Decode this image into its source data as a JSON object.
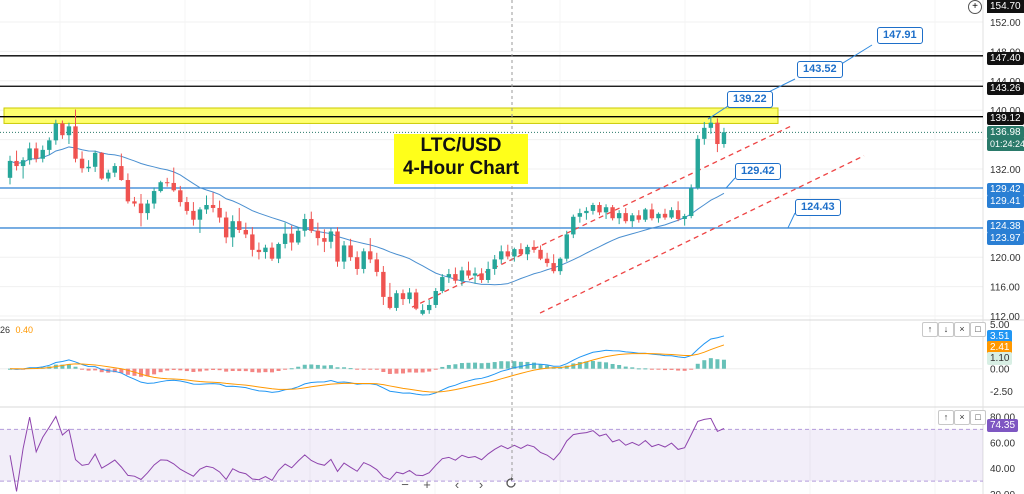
{
  "chart_data": {
    "type": "candlestick",
    "title": "LTC/USD\n4-Hour Chart",
    "title_lines": [
      "LTC/USD",
      "4-Hour Chart"
    ],
    "price_axis": {
      "range": [
        112,
        154.7
      ],
      "ticks": [
        152,
        148,
        144,
        140,
        136,
        132,
        128,
        124,
        120,
        116,
        112
      ],
      "top_label": "154.70"
    },
    "horizontal_levels": [
      {
        "value": 147.4,
        "color": "#000000",
        "label": "147.40"
      },
      {
        "value": 143.26,
        "color": "#000000",
        "label": "143.26"
      },
      {
        "value": 139.12,
        "color": "#000000",
        "label": "139.12"
      },
      {
        "value": 129.42,
        "color": "#2a7fd4",
        "label": "129.42"
      },
      {
        "value": 123.97,
        "color": "#2a7fd4",
        "label": "123.97"
      }
    ],
    "resistance_zone": [
      138.2,
      140.3
    ],
    "current_price": "136.98",
    "countdown": "01:24:24",
    "other_axis_badges": [
      "129.41",
      "124.38"
    ],
    "annotations": [
      "147.91",
      "143.52",
      "139.22",
      "129.42",
      "124.43"
    ],
    "macd": {
      "label_prefix": "26",
      "label_value": "0.40",
      "range": [
        -3.5,
        5
      ],
      "ticks": [
        "5.00",
        "2.50",
        "0.00",
        "-2.50"
      ],
      "badges": [
        "3.51",
        "2.41",
        "1.10"
      ]
    },
    "rsi": {
      "range": [
        20,
        85
      ],
      "ticks": [
        "80.00",
        "60.00",
        "40.00",
        "20.00"
      ],
      "badge": "74.35",
      "band": [
        30,
        70
      ]
    },
    "candles": [
      [
        130.8,
        133.8,
        129.9,
        133.1
      ],
      [
        133.1,
        134.5,
        131.8,
        132.4
      ],
      [
        132.4,
        133.6,
        130.7,
        133.2
      ],
      [
        133.2,
        135.6,
        132.6,
        134.8
      ],
      [
        134.8,
        135.6,
        132.9,
        133.4
      ],
      [
        133.4,
        135.2,
        132.9,
        134.6
      ],
      [
        134.6,
        136.3,
        133.9,
        135.9
      ],
      [
        135.9,
        138.7,
        135.3,
        138.2
      ],
      [
        138.2,
        138.6,
        136.1,
        136.6
      ],
      [
        136.6,
        138.3,
        135.4,
        137.8
      ],
      [
        137.8,
        140.1,
        132.9,
        133.4
      ],
      [
        133.4,
        134.4,
        131.5,
        132.1
      ],
      [
        132.1,
        133.2,
        131.6,
        132.3
      ],
      [
        132.3,
        134.5,
        131.6,
        134.2
      ],
      [
        134.2,
        134.3,
        130.5,
        130.7
      ],
      [
        130.7,
        131.9,
        130.3,
        131.5
      ],
      [
        131.5,
        132.8,
        130.9,
        132.4
      ],
      [
        132.4,
        134.1,
        130.4,
        130.5
      ],
      [
        130.5,
        131.4,
        127.3,
        127.6
      ],
      [
        127.6,
        128.2,
        126.9,
        127.3
      ],
      [
        127.3,
        128.6,
        124.2,
        126.0
      ],
      [
        126.0,
        127.8,
        125.1,
        127.3
      ],
      [
        127.3,
        129.5,
        126.6,
        129.0
      ],
      [
        129.0,
        130.4,
        128.8,
        130.2
      ],
      [
        130.2,
        130.8,
        129.6,
        130.1
      ],
      [
        130.1,
        132.2,
        128.9,
        129.1
      ],
      [
        129.1,
        129.7,
        126.9,
        127.5
      ],
      [
        127.5,
        128.2,
        125.8,
        126.3
      ],
      [
        126.3,
        127.5,
        124.3,
        125.1
      ],
      [
        125.1,
        126.8,
        123.3,
        126.5
      ],
      [
        126.5,
        128.4,
        125.9,
        127.1
      ],
      [
        127.1,
        128.8,
        126.1,
        126.7
      ],
      [
        126.7,
        127.7,
        124.7,
        125.4
      ],
      [
        125.4,
        126.2,
        121.9,
        122.7
      ],
      [
        122.7,
        125.7,
        121.4,
        124.9
      ],
      [
        124.9,
        126.7,
        123.3,
        123.7
      ],
      [
        123.7,
        124.7,
        122.6,
        123.1
      ],
      [
        123.1,
        124.1,
        120.1,
        121.0
      ],
      [
        121.0,
        122.0,
        119.7,
        120.7
      ],
      [
        120.7,
        121.7,
        119.8,
        121.3
      ],
      [
        121.3,
        122.0,
        119.5,
        119.8
      ],
      [
        119.8,
        122.0,
        119.2,
        121.8
      ],
      [
        121.8,
        124.7,
        121.2,
        123.2
      ],
      [
        123.2,
        124.3,
        120.9,
        122.0
      ],
      [
        122.0,
        124.1,
        121.7,
        123.6
      ],
      [
        123.6,
        125.9,
        122.8,
        125.2
      ],
      [
        125.2,
        126.2,
        123.3,
        123.6
      ],
      [
        123.6,
        124.7,
        121.6,
        122.6
      ],
      [
        122.6,
        123.8,
        120.7,
        122.1
      ],
      [
        122.1,
        123.9,
        121.2,
        123.5
      ],
      [
        123.5,
        124.1,
        118.7,
        119.4
      ],
      [
        119.4,
        122.2,
        118.4,
        121.6
      ],
      [
        121.6,
        122.5,
        119.5,
        120.0
      ],
      [
        120.0,
        120.8,
        117.6,
        118.4
      ],
      [
        118.4,
        121.2,
        117.8,
        120.8
      ],
      [
        120.8,
        122.6,
        119.2,
        119.7
      ],
      [
        119.7,
        120.6,
        117.4,
        118.0
      ],
      [
        118.0,
        118.8,
        113.5,
        114.6
      ],
      [
        114.6,
        116.5,
        112.9,
        113.1
      ],
      [
        113.1,
        115.5,
        112.7,
        115.1
      ],
      [
        115.1,
        115.6,
        113.5,
        114.3
      ],
      [
        114.3,
        115.8,
        113.7,
        115.2
      ],
      [
        115.2,
        115.7,
        112.8,
        113.0
      ],
      [
        112.3,
        113.6,
        112.1,
        112.8
      ],
      [
        112.8,
        114.2,
        112.3,
        113.5
      ],
      [
        113.5,
        115.8,
        113.1,
        115.4
      ],
      [
        115.4,
        117.7,
        115.1,
        117.3
      ],
      [
        117.3,
        118.4,
        116.5,
        117.7
      ],
      [
        117.7,
        118.6,
        116.4,
        116.8
      ],
      [
        116.8,
        118.7,
        116.1,
        118.2
      ],
      [
        118.2,
        119.4,
        117.1,
        117.5
      ],
      [
        117.5,
        118.6,
        116.4,
        117.8
      ],
      [
        117.8,
        118.5,
        116.5,
        116.9
      ],
      [
        116.9,
        119.4,
        116.5,
        118.4
      ],
      [
        118.4,
        120.3,
        117.6,
        119.7
      ],
      [
        119.7,
        121.6,
        119.1,
        120.8
      ],
      [
        120.8,
        121.7,
        119.7,
        120.1
      ],
      [
        120.1,
        121.3,
        119.4,
        121.1
      ],
      [
        121.1,
        121.9,
        120.3,
        120.4
      ],
      [
        120.4,
        121.7,
        119.6,
        121.4
      ],
      [
        121.4,
        122.3,
        120.6,
        121.0
      ],
      [
        121.0,
        121.6,
        119.6,
        119.8
      ],
      [
        119.8,
        120.6,
        118.7,
        119.2
      ],
      [
        119.2,
        120.4,
        117.8,
        118.1
      ],
      [
        118.1,
        120.0,
        117.6,
        119.8
      ],
      [
        119.8,
        123.6,
        119.4,
        123.1
      ],
      [
        123.1,
        125.8,
        122.6,
        125.5
      ],
      [
        125.5,
        126.6,
        124.7,
        126.0
      ],
      [
        126.0,
        126.8,
        125.1,
        126.3
      ],
      [
        126.3,
        127.4,
        125.8,
        127.1
      ],
      [
        127.1,
        127.5,
        125.7,
        126.1
      ],
      [
        126.1,
        127.2,
        125.2,
        126.8
      ],
      [
        126.8,
        127.1,
        125.0,
        125.3
      ],
      [
        125.3,
        126.4,
        124.5,
        126.0
      ],
      [
        126.0,
        126.7,
        124.6,
        124.9
      ],
      [
        124.9,
        126.0,
        124.1,
        125.7
      ],
      [
        125.7,
        126.4,
        124.7,
        125.1
      ],
      [
        125.1,
        126.7,
        124.8,
        126.5
      ],
      [
        126.5,
        127.3,
        125.0,
        125.3
      ],
      [
        125.3,
        126.1,
        124.7,
        125.9
      ],
      [
        125.9,
        126.6,
        125.1,
        125.4
      ],
      [
        125.4,
        126.8,
        125.2,
        126.4
      ],
      [
        126.4,
        127.6,
        124.9,
        125.2
      ],
      [
        125.2,
        125.9,
        124.3,
        125.6
      ],
      [
        125.6,
        129.9,
        125.3,
        129.4
      ],
      [
        129.4,
        136.6,
        129.2,
        136.1
      ],
      [
        136.1,
        138.4,
        135.3,
        137.6
      ],
      [
        137.6,
        139.2,
        136.8,
        138.3
      ],
      [
        138.3,
        138.9,
        134.3,
        135.4
      ],
      [
        135.4,
        137.6,
        134.9,
        137.0
      ]
    ]
  },
  "toolbar": {
    "zoom_out": "−",
    "zoom_in": "+",
    "back": "‹",
    "forward": "›",
    "reset": "reset-icon"
  },
  "pane_buttons": [
    "↑",
    "↓",
    "×",
    "□"
  ]
}
